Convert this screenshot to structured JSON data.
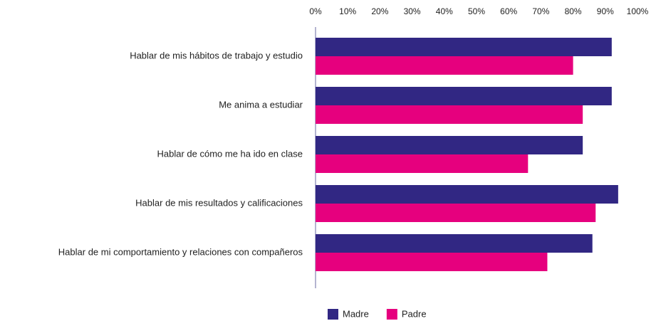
{
  "chart_data": {
    "type": "barh",
    "categories": [
      "Hablar de mis hábitos de trabajo y estudio",
      "Me anima a estudiar",
      "Hablar de cómo me ha ido en clase",
      "Hablar de mis resultados y calificaciones",
      "Hablar de mi comportamiento y relaciones con compañeros"
    ],
    "series": [
      {
        "name": "Madre",
        "color": "#312783",
        "values": [
          92,
          92,
          83,
          94,
          86
        ]
      },
      {
        "name": "Padre",
        "color": "#e6007e",
        "values": [
          80,
          83,
          66,
          87,
          72
        ]
      }
    ],
    "xlim": [
      0,
      100
    ],
    "xticks": [
      {
        "value": 0,
        "label": "0%"
      },
      {
        "value": 10,
        "label": "10%"
      },
      {
        "value": 20,
        "label": "20%"
      },
      {
        "value": 30,
        "label": "30%"
      },
      {
        "value": 40,
        "label": "40%"
      },
      {
        "value": 50,
        "label": "50%"
      },
      {
        "value": 60,
        "label": "60%"
      },
      {
        "value": 70,
        "label": "70%"
      },
      {
        "value": 80,
        "label": "80%"
      },
      {
        "value": 90,
        "label": "90%"
      },
      {
        "value": 100,
        "label": "100%"
      }
    ],
    "legend": "bottom"
  }
}
